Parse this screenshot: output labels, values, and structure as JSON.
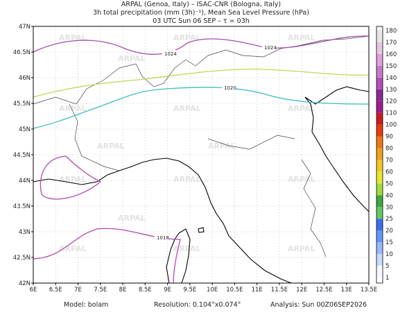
{
  "header": {
    "lines": [
      "ARPAL (Genoa, Italy)  –  ISAC-CNR (Bologna, Italy)",
      "3h total precipitation (mm (3h)⁻¹), Mean Sea Level Pressure (hPa)",
      "03 UTC Sun 06 SEP  –  τ = 03h"
    ]
  },
  "map": {
    "x_ticks": [
      "6E",
      "6.5E",
      "7E",
      "7.5E",
      "8E",
      "8.5E",
      "9E",
      "9.5E",
      "10E",
      "10.5E",
      "11E",
      "11.5E",
      "12E",
      "12.5E",
      "13E",
      "13.5E"
    ],
    "y_ticks": [
      "42N",
      "42.5N",
      "43N",
      "43.5N",
      "44N",
      "44.5N",
      "45N",
      "45.5N",
      "46N",
      "46.5N",
      "47N"
    ],
    "watermark": "ARPAL",
    "isobar_labels": [
      "1024",
      "1024",
      "1020",
      "1018"
    ]
  },
  "colorbar": {
    "levels": [
      1,
      5,
      10,
      15,
      20,
      25,
      30,
      40,
      50,
      60,
      70,
      80,
      90,
      100,
      110,
      120,
      130,
      140,
      150,
      160,
      170,
      180
    ],
    "colors": [
      "#f4f8ff",
      "#c8dcff",
      "#96bcff",
      "#6496ff",
      "#3c6ef0",
      "#64c864",
      "#3caa3c",
      "#a0dc3c",
      "#e6e632",
      "#f0c828",
      "#f0a01e",
      "#f07814",
      "#e63c14",
      "#c81e1e",
      "#a01e8c",
      "#8c2896",
      "#b450b4",
      "#c878c8",
      "#dca0dc",
      "#e6c8e6",
      "#e6e6e6",
      "#f2f2f2"
    ]
  },
  "footer": {
    "model": "Model: bolam",
    "resolution": "Resolution: 0.104°x0.074°",
    "analysis": "Analysis: Sun 00Z06SEP2026"
  }
}
